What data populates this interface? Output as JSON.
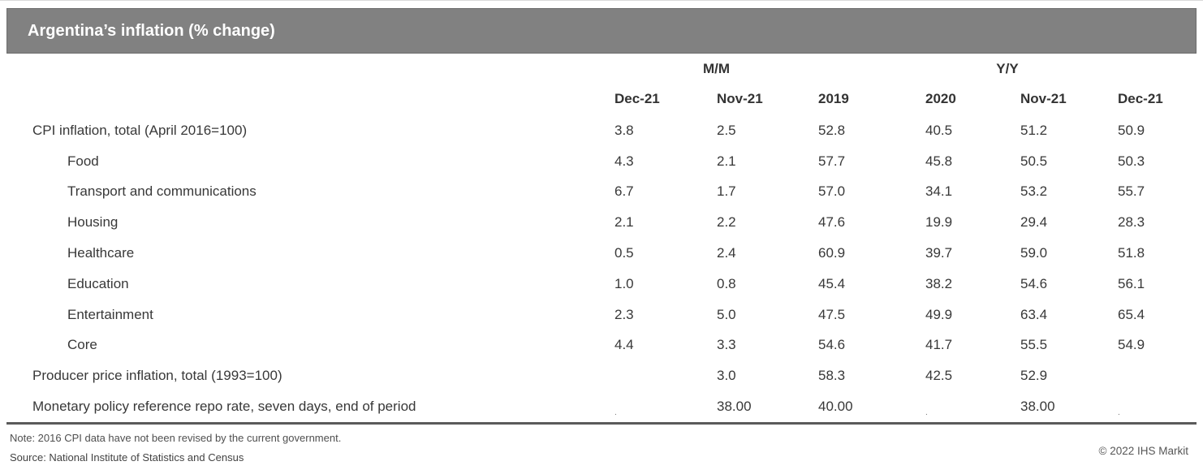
{
  "title": "Argentina’s inflation (% change)",
  "chart_data": {
    "type": "table",
    "title": "Argentina’s inflation (% change)",
    "column_groups": [
      {
        "label": "M/M",
        "span": 2
      },
      {
        "label": "Y/Y",
        "span": 4
      }
    ],
    "columns": [
      "Dec-21",
      "Nov-21",
      "2019",
      "2020",
      "Nov-21",
      "Dec-21"
    ],
    "rows": [
      {
        "label": "CPI inflation, total (April 2016=100)",
        "indent": false,
        "values": [
          "3.8",
          "2.5",
          "52.8",
          "40.5",
          "51.2",
          "50.9"
        ]
      },
      {
        "label": "Food",
        "indent": true,
        "values": [
          "4.3",
          "2.1",
          "57.7",
          "45.8",
          "50.5",
          "50.3"
        ]
      },
      {
        "label": "Transport and communications",
        "indent": true,
        "values": [
          "6.7",
          "1.7",
          "57.0",
          "34.1",
          "53.2",
          "55.7"
        ]
      },
      {
        "label": "Housing",
        "indent": true,
        "values": [
          "2.1",
          "2.2",
          "47.6",
          "19.9",
          "29.4",
          "28.3"
        ]
      },
      {
        "label": "Healthcare",
        "indent": true,
        "values": [
          "0.5",
          "2.4",
          "60.9",
          "39.7",
          "59.0",
          "51.8"
        ]
      },
      {
        "label": "Education",
        "indent": true,
        "values": [
          "1.0",
          "0.8",
          "45.4",
          "38.2",
          "54.6",
          "56.1"
        ]
      },
      {
        "label": "Entertainment",
        "indent": true,
        "values": [
          "2.3",
          "5.0",
          "47.5",
          "49.9",
          "63.4",
          "65.4"
        ]
      },
      {
        "label": "Core",
        "indent": true,
        "values": [
          "4.4",
          "3.3",
          "54.6",
          "41.7",
          "55.5",
          "54.9"
        ]
      },
      {
        "label": "Producer price inflation, total (1993=100)",
        "indent": false,
        "values": [
          "",
          "3.0",
          "58.3",
          "42.5",
          "52.9",
          ""
        ]
      },
      {
        "label": "Monetary policy reference repo rate, seven days, end of period",
        "indent": false,
        "values": [
          ".",
          "38.00",
          "40.00",
          ".",
          "38.00",
          "."
        ]
      }
    ]
  },
  "footer": {
    "note": "Note: 2016 CPI data have not been revised by the current government.",
    "source": "Source: National Institute of Statistics and Census",
    "copyright": "© 2022 IHS Markit"
  },
  "colors": {
    "title_bar_bg": "#818181",
    "title_bar_text": "#ffffff",
    "table_text": "#383838",
    "divider": "#5a5a5a",
    "footer_text": "#4f4f4f"
  }
}
